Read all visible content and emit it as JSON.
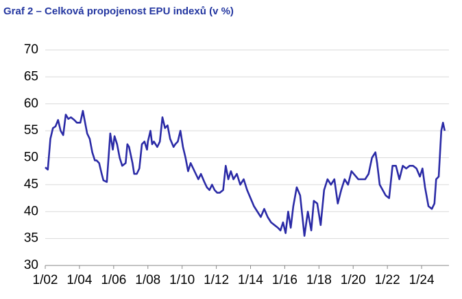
{
  "chart_data": {
    "type": "line",
    "title": "Graf 2 – Celková propojenost EPU indexů (v %)",
    "x": [
      2002.0,
      2002.15,
      2002.3,
      2002.45,
      2002.6,
      2002.75,
      2002.9,
      2003.05,
      2003.2,
      2003.35,
      2003.5,
      2003.7,
      2003.85,
      2004.05,
      2004.2,
      2004.3,
      2004.45,
      2004.6,
      2004.75,
      2004.9,
      2005.0,
      2005.15,
      2005.3,
      2005.4,
      2005.6,
      2005.8,
      2005.95,
      2006.05,
      2006.2,
      2006.35,
      2006.5,
      2006.7,
      2006.8,
      2006.9,
      2007.1,
      2007.2,
      2007.35,
      2007.5,
      2007.65,
      2007.8,
      2007.95,
      2008.0,
      2008.15,
      2008.25,
      2008.35,
      2008.55,
      2008.7,
      2008.85,
      2009.0,
      2009.15,
      2009.3,
      2009.5,
      2009.6,
      2009.75,
      2009.9,
      2010.05,
      2010.2,
      2010.35,
      2010.5,
      2010.65,
      2010.8,
      2010.95,
      2011.1,
      2011.3,
      2011.45,
      2011.6,
      2011.75,
      2011.9,
      2012.05,
      2012.2,
      2012.4,
      2012.55,
      2012.7,
      2012.85,
      2013.0,
      2013.2,
      2013.4,
      2013.6,
      2013.8,
      2014.0,
      2014.2,
      2014.4,
      2014.6,
      2014.8,
      2015.0,
      2015.2,
      2015.4,
      2015.6,
      2015.75,
      2015.9,
      2016.05,
      2016.2,
      2016.35,
      2016.5,
      2016.7,
      2016.9,
      2017.15,
      2017.35,
      2017.55,
      2017.7,
      2017.9,
      2018.1,
      2018.3,
      2018.5,
      2018.7,
      2018.9,
      2019.1,
      2019.3,
      2019.5,
      2019.7,
      2019.9,
      2020.3,
      2020.7,
      2020.9,
      2021.1,
      2021.3,
      2021.4,
      2021.55,
      2021.9,
      2022.1,
      2022.3,
      2022.5,
      2022.7,
      2022.9,
      2023.1,
      2023.3,
      2023.5,
      2023.7,
      2023.9,
      2024.05,
      2024.2,
      2024.4,
      2024.6,
      2024.75,
      2024.85,
      2025.0,
      2025.15,
      2025.25,
      2025.35
    ],
    "series": [
      {
        "color": "#2a2aa6",
        "values": [
          48.2,
          47.8,
          53.5,
          55.5,
          55.8,
          57,
          55,
          54.2,
          58,
          57.2,
          57.5,
          57,
          56.5,
          56.5,
          58.7,
          57,
          54.5,
          53.5,
          51,
          49.5,
          49.5,
          49,
          47,
          45.8,
          45.5,
          54.5,
          51.5,
          54,
          52.5,
          50,
          48.5,
          49,
          52.5,
          52,
          49,
          47,
          47,
          48,
          52.5,
          53,
          51.5,
          53,
          55,
          52.5,
          53,
          52,
          53,
          57.5,
          55.5,
          56,
          53.5,
          52,
          52.5,
          53,
          55,
          52,
          50,
          47.5,
          49,
          48,
          47,
          46,
          47,
          45.5,
          44.5,
          44,
          45,
          44,
          43.5,
          43.5,
          44,
          48.5,
          46,
          47.5,
          46,
          47,
          45,
          46,
          44,
          42.5,
          41,
          40,
          39,
          40.5,
          39,
          38,
          37.5,
          37,
          36.5,
          38,
          36,
          40,
          37,
          41,
          44.5,
          43,
          35.5,
          40,
          36.5,
          42,
          41.5,
          37.5,
          44,
          46,
          45,
          46,
          41.5,
          44,
          46,
          45,
          47.5,
          46,
          46,
          47,
          50,
          51,
          49,
          45,
          43,
          42.5,
          48.5,
          48.5,
          46,
          48.5,
          48,
          48.5,
          48.5,
          48,
          46.5,
          48,
          44.5,
          41,
          40.5,
          41.5,
          46,
          46.5,
          55,
          56.5,
          55
        ]
      }
    ],
    "xlim": [
      2002,
      2025.8
    ],
    "xticks": [
      {
        "value": 2002,
        "label": "1/02"
      },
      {
        "value": 2004,
        "label": "1/04"
      },
      {
        "value": 2006,
        "label": "1/06"
      },
      {
        "value": 2008,
        "label": "1/08"
      },
      {
        "value": 2010,
        "label": "1/10"
      },
      {
        "value": 2012,
        "label": "1/12"
      },
      {
        "value": 2014,
        "label": "1/14"
      },
      {
        "value": 2016,
        "label": "1/16"
      },
      {
        "value": 2018,
        "label": "1/18"
      },
      {
        "value": 2020,
        "label": "1/20"
      },
      {
        "value": 2022,
        "label": "1/22"
      },
      {
        "value": 2024,
        "label": "1/24"
      }
    ],
    "ylim": [
      30,
      70
    ],
    "yticks": [
      30,
      35,
      40,
      45,
      50,
      55,
      60,
      65,
      70
    ],
    "grid": true
  }
}
